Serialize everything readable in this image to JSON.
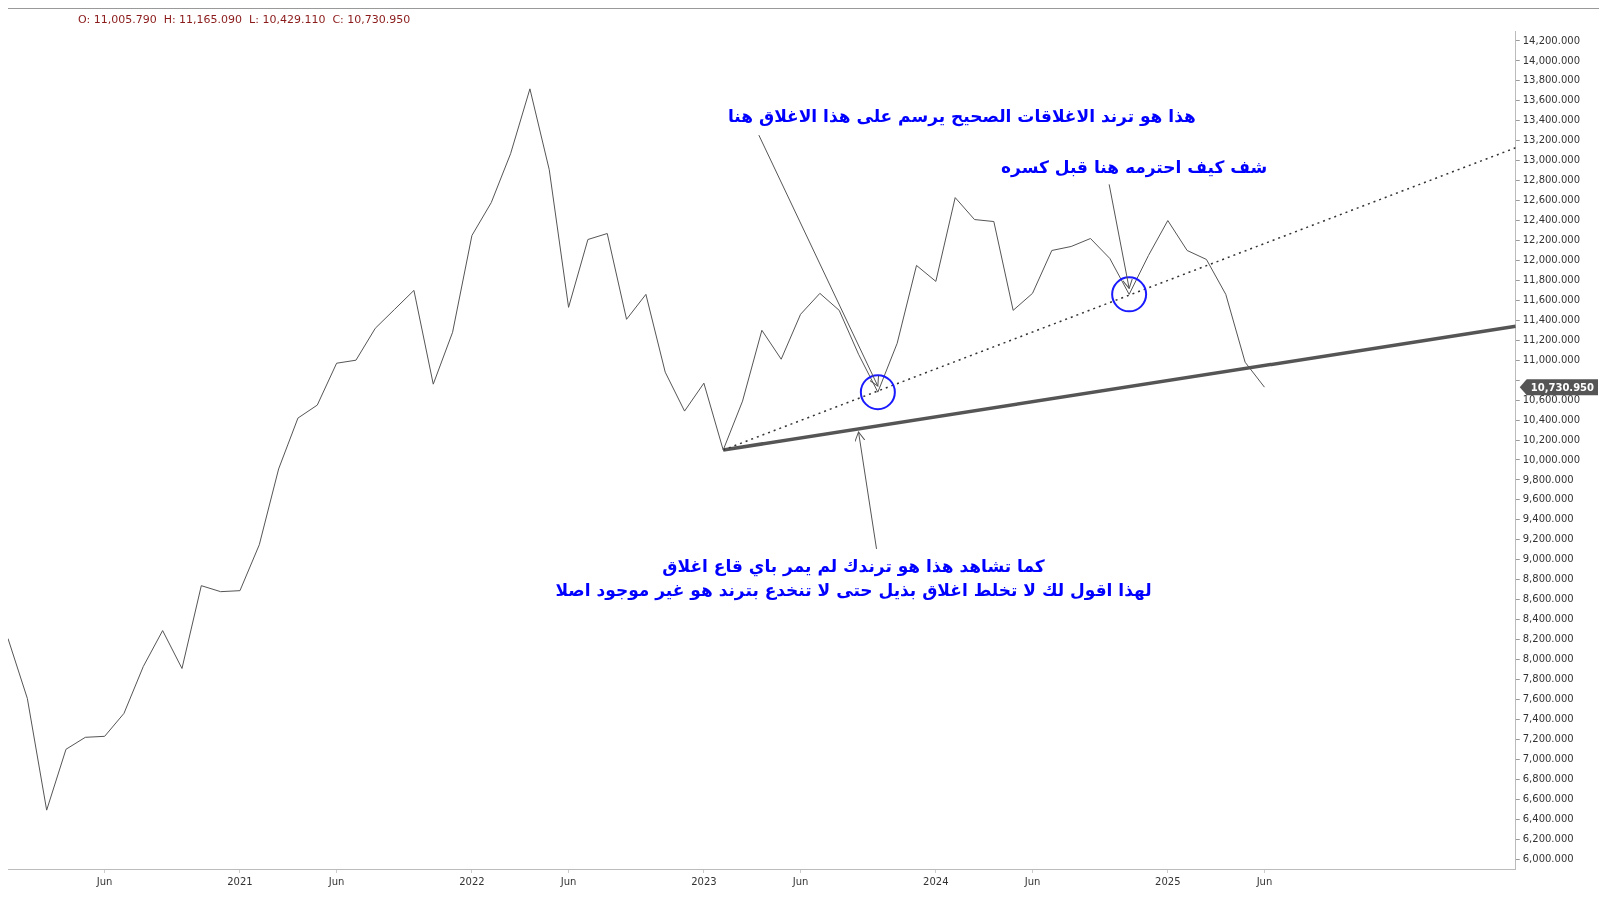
{
  "chart_data": {
    "type": "line",
    "x": [
      "2020-01",
      "2020-02",
      "2020-03",
      "2020-04",
      "2020-05",
      "2020-06",
      "2020-07",
      "2020-08",
      "2020-09",
      "2020-10",
      "2020-11",
      "2020-12",
      "2021-01",
      "2021-02",
      "2021-03",
      "2021-04",
      "2021-05",
      "2021-06",
      "2021-07",
      "2021-08",
      "2021-09",
      "2021-10",
      "2021-11",
      "2021-12",
      "2022-01",
      "2022-02",
      "2022-03",
      "2022-04",
      "2022-05",
      "2022-06",
      "2022-07",
      "2022-08",
      "2022-09",
      "2022-10",
      "2022-11",
      "2022-12",
      "2023-01",
      "2023-02",
      "2023-03",
      "2023-04",
      "2023-05",
      "2023-06",
      "2023-07",
      "2023-08",
      "2023-09",
      "2023-10",
      "2023-11",
      "2023-12",
      "2024-01",
      "2024-02",
      "2024-03",
      "2024-04",
      "2024-05",
      "2024-06",
      "2024-07",
      "2024-08",
      "2024-09",
      "2024-10",
      "2024-11",
      "2024-12",
      "2025-01",
      "2025-02",
      "2025-03",
      "2025-04",
      "2025-05",
      "2025-06"
    ],
    "series": [
      {
        "color": "#555555",
        "line_style": "solid",
        "values": [
          8210,
          7610,
          6490,
          7100,
          7220,
          7230,
          7460,
          7930,
          8290,
          7910,
          8740,
          8680,
          8690,
          9150,
          9910,
          10420,
          10550,
          10970,
          11000,
          11320,
          11510,
          11700,
          10760,
          11280,
          12250,
          12580,
          13070,
          13720,
          12910,
          11530,
          12210,
          12270,
          11410,
          11660,
          10880,
          10490,
          10770,
          10100,
          10590,
          11300,
          11010,
          11460,
          11670,
          11500,
          11060,
          10680,
          11170,
          11950,
          11790,
          12630,
          12410,
          12390,
          11500,
          11670,
          12100,
          12140,
          12220,
          12020,
          11660,
          12050,
          12400,
          12100,
          12010,
          11660,
          10980,
          10730
        ]
      },
      {
        "type": "line",
        "color": "#333333",
        "line_style": "dotted",
        "x": [
          "2023-02",
          "2026-07"
        ],
        "values": [
          10100,
          13130
        ]
      },
      {
        "type": "line",
        "color": "#555555",
        "line_style": "solid",
        "x": [
          "2023-02",
          "2026-07"
        ],
        "values": [
          10100,
          11340
        ]
      }
    ],
    "xlim": [
      "2020-01",
      "2026-07"
    ],
    "xticks": [
      {
        "value": "2020-06",
        "label": "Jun"
      },
      {
        "value": "2021-01",
        "label": "2021"
      },
      {
        "value": "2021-06",
        "label": "Jun"
      },
      {
        "value": "2022-01",
        "label": "2022"
      },
      {
        "value": "2022-06",
        "label": "Jun"
      },
      {
        "value": "2023-01",
        "label": "2023"
      },
      {
        "value": "2023-06",
        "label": "Jun"
      },
      {
        "value": "2024-01",
        "label": "2024"
      },
      {
        "value": "2024-06",
        "label": "Jun"
      },
      {
        "value": "2025-01",
        "label": "2025"
      },
      {
        "value": "2025-06",
        "label": "Jun"
      }
    ],
    "ylim": [
      5900,
      14300
    ],
    "yticks": [
      {
        "value": 6000,
        "label": "6,000.000"
      },
      {
        "value": 6200,
        "label": "6,200.000"
      },
      {
        "value": 6400,
        "label": "6,400.000"
      },
      {
        "value": 6600,
        "label": "6,600.000"
      },
      {
        "value": 6800,
        "label": "6,800.000"
      },
      {
        "value": 7000,
        "label": "7,000.000"
      },
      {
        "value": 7200,
        "label": "7,200.000"
      },
      {
        "value": 7400,
        "label": "7,400.000"
      },
      {
        "value": 7600,
        "label": "7,600.000"
      },
      {
        "value": 7800,
        "label": "7,800.000"
      },
      {
        "value": 8000,
        "label": "8,000.000"
      },
      {
        "value": 8200,
        "label": "8,200.000"
      },
      {
        "value": 8400,
        "label": "8,400.000"
      },
      {
        "value": 8600,
        "label": "8,600.000"
      },
      {
        "value": 8800,
        "label": "8,800.000"
      },
      {
        "value": 9000,
        "label": "9,000.000"
      },
      {
        "value": 9200,
        "label": "9,200.000"
      },
      {
        "value": 9400,
        "label": "9,400.000"
      },
      {
        "value": 9600,
        "label": "9,600.000"
      },
      {
        "value": 9800,
        "label": "9,800.000"
      },
      {
        "value": 10000,
        "label": "10,000.000"
      },
      {
        "value": 10200,
        "label": "10,200.000"
      },
      {
        "value": 10400,
        "label": "10,400.000"
      },
      {
        "value": 10600,
        "label": "10,600.000"
      },
      {
        "value": 10800,
        "label": null
      },
      {
        "value": 11000,
        "label": "11,000.000"
      },
      {
        "value": 11200,
        "label": "11,200.000"
      },
      {
        "value": 11400,
        "label": "11,400.000"
      },
      {
        "value": 11600,
        "label": "11,600.000"
      },
      {
        "value": 11800,
        "label": "11,800.000"
      },
      {
        "value": 12000,
        "label": "12,000.000"
      },
      {
        "value": 12200,
        "label": "12,200.000"
      },
      {
        "value": 12400,
        "label": "12,400.000"
      },
      {
        "value": 12600,
        "label": "12,600.000"
      },
      {
        "value": 12800,
        "label": "12,800.000"
      },
      {
        "value": 13000,
        "label": "13,000.000"
      },
      {
        "value": 13200,
        "label": "13,200.000"
      },
      {
        "value": 13400,
        "label": "13,400.000"
      },
      {
        "value": 13600,
        "label": "13,600.000"
      },
      {
        "value": 13800,
        "label": "13,800.000"
      },
      {
        "value": 14000,
        "label": "14,000.000"
      },
      {
        "value": 14200,
        "label": "14,200.000"
      }
    ],
    "grid": false,
    "legend": false,
    "marker": "none",
    "annotations": [
      {
        "text": "هذا هو ترند الاغلاقات الصحيح يرسم على هذا الاغلاق هنا",
        "x": "2023-10",
        "y": 10680
      },
      {
        "text": "شف كيف احترمه هنا قبل كسره",
        "x": "2024-11",
        "y": 11660
      },
      {
        "text": "كما تشاهد هذا هو ترندك لم يمر باي قاع اغلاق\nلهذا اقول لك لا تخلط اغلاق بذيل حتى لا تنخدع بترند هو غير موجود اصلا",
        "x": "2023-09",
        "y": 10311
      },
      "O: 11,005.790  H: 11,165.090  L: 10,429.110  C: 10,730.950",
      "10,730.950"
    ]
  }
}
